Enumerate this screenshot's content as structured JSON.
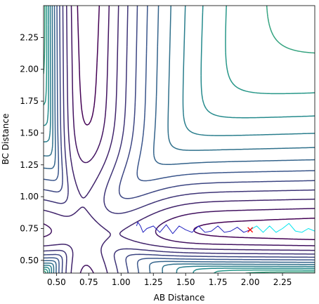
{
  "chart_data": {
    "type": "contour",
    "xlabel": "AB Distance",
    "ylabel": "BC Distance",
    "xlim": [
      0.4,
      2.5
    ],
    "ylim": [
      0.4,
      2.5
    ],
    "x_ticks": [
      0.5,
      0.75,
      1.0,
      1.25,
      1.5,
      1.75,
      2.0,
      2.25
    ],
    "x_tick_labels": [
      "0.50",
      "0.75",
      "1.00",
      "1.25",
      "1.50",
      "1.75",
      "2.00",
      "2.25"
    ],
    "y_ticks": [
      0.5,
      0.75,
      1.0,
      1.25,
      1.5,
      1.75,
      2.0,
      2.25
    ],
    "y_tick_labels": [
      "0.50",
      "0.75",
      "1.00",
      "1.25",
      "1.50",
      "1.75",
      "2.00",
      "2.25"
    ],
    "colormap": [
      "#440154",
      "#3b528b",
      "#21918c",
      "#5ec962",
      "#fde725"
    ],
    "contour_levels": 20,
    "trajectory_forward": {
      "color": "#00e5ee",
      "x": [
        2.0,
        2.05,
        2.1,
        2.15,
        2.2,
        2.25,
        2.3,
        2.35,
        2.4,
        2.45,
        2.5
      ],
      "y": [
        0.74,
        0.77,
        0.72,
        0.77,
        0.72,
        0.75,
        0.79,
        0.73,
        0.72,
        0.75,
        0.73
      ]
    },
    "trajectory_backward": {
      "color": "#1f1fbf",
      "x": [
        2.0,
        1.95,
        1.9,
        1.85,
        1.8,
        1.75,
        1.7,
        1.65,
        1.6,
        1.55,
        1.5,
        1.45,
        1.4,
        1.35,
        1.3,
        1.25,
        1.2,
        1.17,
        1.15,
        1.13,
        1.12
      ],
      "y": [
        0.74,
        0.72,
        0.76,
        0.73,
        0.72,
        0.77,
        0.73,
        0.72,
        0.77,
        0.72,
        0.74,
        0.77,
        0.71,
        0.78,
        0.72,
        0.77,
        0.75,
        0.72,
        0.77,
        0.8,
        0.77
      ]
    },
    "start_marker": {
      "symbol": "x",
      "color": "#ff0000",
      "x": 2.0,
      "y": 0.74
    }
  }
}
